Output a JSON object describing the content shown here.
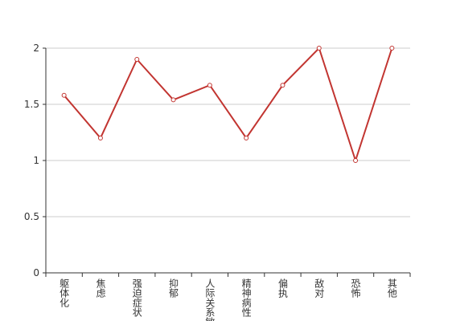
{
  "chart_data": {
    "type": "line",
    "categories": [
      "躯体化",
      "焦虑",
      "强迫症状",
      "抑郁",
      "人际关系敏感",
      "精神病性",
      "偏执",
      "敌对",
      "恐怖",
      "其他"
    ],
    "series": [
      {
        "color": "#c23531",
        "values": [
          1.58,
          1.2,
          1.9,
          1.54,
          1.67,
          1.2,
          1.67,
          2,
          1,
          2
        ]
      }
    ],
    "ylim": [
      0,
      2
    ],
    "yticks": [
      0,
      0.5,
      1,
      1.5,
      2
    ],
    "grid": true
  }
}
